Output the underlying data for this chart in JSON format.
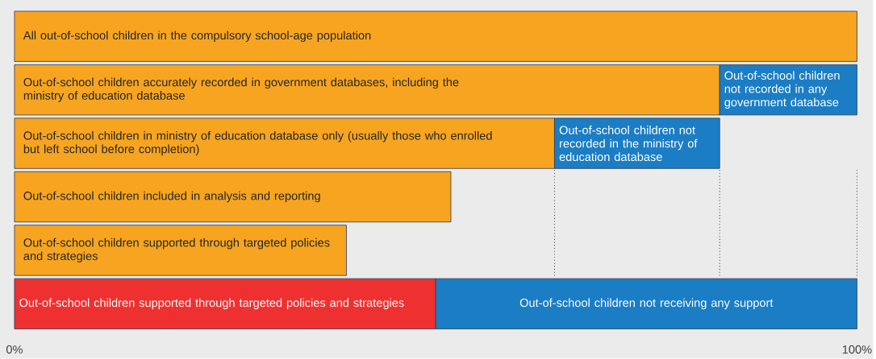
{
  "chart_data": {
    "type": "bar",
    "orientation": "horizontal",
    "stacked": true,
    "categories": [
      null,
      null,
      null,
      null,
      null,
      null
    ],
    "series": [
      {
        "color": "#f7a520",
        "values": [
          100,
          83.7,
          64.1,
          51.8,
          39.4,
          null
        ],
        "value_labels": [
          "All out-of-school children in the compulsory school-age population",
          "Out-of-school children accurately recorded in government databases, including the ministry of education database",
          "Out-of-school children in ministry of education database only (usually those who enrolled but left school before completion)",
          "Out-of-school children included in analysis and reporting",
          "Out-of-school children supported through targeted policies and strategies",
          null
        ]
      },
      {
        "color": "#ee3130",
        "values": [
          null,
          null,
          null,
          null,
          null,
          50
        ],
        "value_labels": [
          null,
          null,
          null,
          null,
          null,
          "Out-of-school children supported through targeted policies and strategies"
        ]
      },
      {
        "color": "#1b7dc4",
        "values": [
          null,
          16.3,
          19.6,
          null,
          null,
          50
        ],
        "value_labels": [
          null,
          "Out-of-school children not recorded in any government database",
          "Out-of-school children not recorded in the ministry of education database",
          null,
          null,
          "Out-of-school children not receiving any support"
        ]
      }
    ],
    "xlim": [
      0,
      100
    ],
    "xticks": [
      {
        "value": 0,
        "label": "0%"
      },
      {
        "value": 100,
        "label": "100%"
      }
    ],
    "ref_lines": [
      {
        "axis": "x",
        "value": 64.1,
        "line_style": "dotted"
      },
      {
        "axis": "x",
        "value": 83.7,
        "line_style": "dotted"
      },
      {
        "axis": "x",
        "value": 100,
        "line_style": "dotted"
      }
    ]
  }
}
